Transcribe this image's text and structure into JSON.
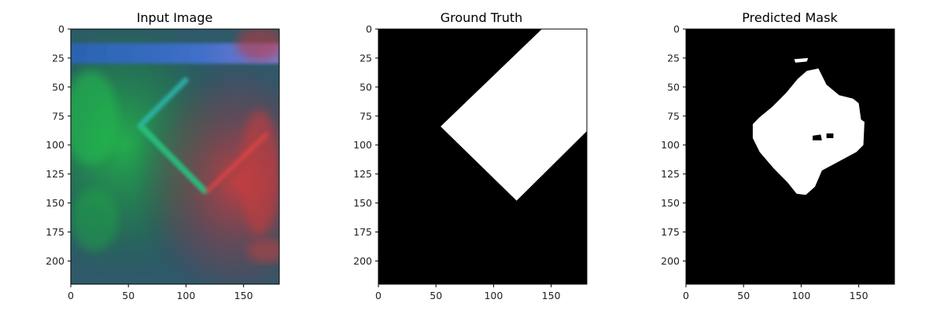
{
  "figure": {
    "panels": [
      {
        "id": "input",
        "title": "Input Image"
      },
      {
        "id": "gt",
        "title": "Ground Truth"
      },
      {
        "id": "pred",
        "title": "Predicted Mask"
      }
    ]
  },
  "chart_data": [
    {
      "type": "heatmap",
      "title": "Input Image",
      "content": "RGB image: blue band across the top, green glow on the left, a cyan/green diagonal streak and a red streak on the right",
      "xlim": [
        0,
        181
      ],
      "ylim": [
        220,
        0
      ],
      "xticks": [
        0,
        50,
        100,
        150
      ],
      "yticks": [
        0,
        25,
        50,
        75,
        100,
        125,
        150,
        175,
        200
      ],
      "xlabel": "",
      "ylabel": ""
    },
    {
      "type": "heatmap",
      "title": "Ground Truth",
      "content": "binary mask (black background, white rotated rectangle)",
      "mask_polygon": [
        [
          142,
          0
        ],
        [
          181,
          0
        ],
        [
          181,
          88
        ],
        [
          120,
          148
        ],
        [
          54,
          84
        ]
      ],
      "xlim": [
        0,
        181
      ],
      "ylim": [
        220,
        0
      ],
      "xticks": [
        0,
        50,
        100,
        150
      ],
      "yticks": [
        0,
        25,
        50,
        75,
        100,
        125,
        150,
        175,
        200
      ],
      "xlabel": "",
      "ylabel": ""
    },
    {
      "type": "heatmap",
      "title": "Predicted Mask",
      "content": "binary mask (black background, white irregular diamond region with a small gap near the center-right)",
      "mask_polygon": [
        [
          105,
          36
        ],
        [
          115,
          34
        ],
        [
          122,
          48
        ],
        [
          133,
          57
        ],
        [
          145,
          60
        ],
        [
          150,
          64
        ],
        [
          152,
          78
        ],
        [
          155,
          80
        ],
        [
          154,
          100
        ],
        [
          148,
          106
        ],
        [
          118,
          122
        ],
        [
          112,
          136
        ],
        [
          104,
          143
        ],
        [
          96,
          142
        ],
        [
          88,
          132
        ],
        [
          76,
          120
        ],
        [
          64,
          106
        ],
        [
          58,
          94
        ],
        [
          58,
          82
        ],
        [
          64,
          76
        ],
        [
          75,
          67
        ],
        [
          87,
          55
        ],
        [
          97,
          43
        ]
      ],
      "mask_blob": [
        [
          94,
          26
        ],
        [
          106,
          25
        ],
        [
          105,
          28
        ],
        [
          95,
          29
        ]
      ],
      "mask_holes": [
        [
          [
            110,
            92
          ],
          [
            117,
            91
          ],
          [
            118,
            96
          ],
          [
            110,
            96
          ]
        ],
        [
          [
            122,
            90
          ],
          [
            128,
            90
          ],
          [
            128,
            94
          ],
          [
            122,
            94
          ]
        ]
      ],
      "xlim": [
        0,
        181
      ],
      "ylim": [
        220,
        0
      ],
      "xticks": [
        0,
        50,
        100,
        150
      ],
      "yticks": [
        0,
        25,
        50,
        75,
        100,
        125,
        150,
        175,
        200
      ],
      "xlabel": "",
      "ylabel": ""
    }
  ]
}
